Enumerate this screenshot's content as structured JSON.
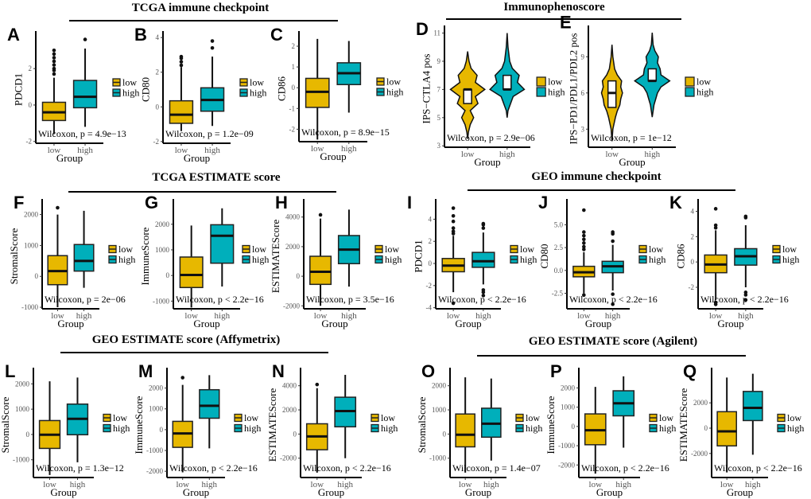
{
  "colors": {
    "low": "#E7B800",
    "high": "#00AFBB",
    "violin_box": "#FFFFFF"
  },
  "sections": [
    {
      "title": "TCGA  immune checkpoint"
    },
    {
      "title": "Immunophenoscore"
    },
    {
      "title": "TCGA ESTIMATE score"
    },
    {
      "title": "GEO  immune checkpoint"
    },
    {
      "title": "GEO ESTIMATE score (Affymetrix)"
    },
    {
      "title": "GEO ESTIMATE score (Agilent)"
    }
  ],
  "chart_data": [
    {
      "label": "A",
      "type": "box",
      "xlabel": "Group",
      "ylabel": "PDCD1",
      "ylim": [
        -2.1,
        3.8
      ],
      "yticks": [
        "-2",
        "0",
        "2"
      ],
      "categories": [
        "low",
        "high"
      ],
      "legend": [
        "low",
        "high"
      ],
      "stat": "Wilcoxon, p = 4.9e−13",
      "groups": [
        {
          "name": "low",
          "min": -1.6,
          "q1": -0.85,
          "median": -0.4,
          "q3": 0.15,
          "max": 1.5,
          "outliers": [
            1.7,
            1.9,
            2.0,
            2.2,
            2.4,
            2.6,
            2.8,
            3.0
          ]
        },
        {
          "name": "high",
          "min": -1.2,
          "q1": -0.15,
          "median": 0.45,
          "q3": 1.35,
          "max": 3.1,
          "outliers": [
            3.6
          ]
        }
      ]
    },
    {
      "label": "B",
      "type": "box",
      "xlabel": "Group",
      "ylabel": "CD80",
      "ylim": [
        -2.1,
        4.1
      ],
      "yticks": [
        "-2",
        "0",
        "2",
        "4"
      ],
      "categories": [
        "low",
        "high"
      ],
      "legend": [
        "low",
        "high"
      ],
      "stat": "Wilcoxon, p = 1.2e−09",
      "groups": [
        {
          "name": "low",
          "min": -1.4,
          "q1": -0.95,
          "median": -0.45,
          "q3": 0.35,
          "max": 2.3,
          "outliers": [
            2.4,
            2.6,
            2.8,
            2.9
          ]
        },
        {
          "name": "high",
          "min": -1.1,
          "q1": -0.25,
          "median": 0.4,
          "q3": 1.1,
          "max": 2.9,
          "outliers": [
            3.4,
            3.8
          ]
        }
      ]
    },
    {
      "label": "C",
      "type": "box",
      "xlabel": "Group",
      "ylabel": "CD86",
      "ylim": [
        -2.6,
        2.5
      ],
      "yticks": [
        "-2",
        "-1",
        "0",
        "1",
        "2"
      ],
      "categories": [
        "low",
        "high"
      ],
      "legend": [
        "low",
        "high"
      ],
      "stat": "Wilcoxon, p = 8.9e−15",
      "groups": [
        {
          "name": "low",
          "min": -2.5,
          "q1": -0.95,
          "median": -0.2,
          "q3": 0.45,
          "max": 2.35,
          "outliers": []
        },
        {
          "name": "high",
          "min": -1.2,
          "q1": 0.15,
          "median": 0.7,
          "q3": 1.2,
          "max": 2.25,
          "outliers": []
        }
      ]
    },
    {
      "label": "D",
      "type": "violin",
      "xlabel": "Group",
      "ylabel": "IPS−CTLA4 pos",
      "ylim": [
        2.9,
        11.2
      ],
      "yticks": [
        "3",
        "5",
        "7",
        "9",
        "11"
      ],
      "categories": [
        "low",
        "high"
      ],
      "legend": [
        "low",
        "high"
      ],
      "stat": "Wilcoxon, p = 2.9e−06",
      "groups": [
        {
          "name": "low",
          "q1": 6.0,
          "median": 7.0,
          "q3": 7.0,
          "density": [
            [
              3.5,
              0
            ],
            [
              4,
              0.05
            ],
            [
              4.5,
              0.15
            ],
            [
              5,
              0.35
            ],
            [
              5.5,
              0.15
            ],
            [
              6,
              0.6
            ],
            [
              6.5,
              0.45
            ],
            [
              7,
              1.0
            ],
            [
              7.5,
              0.45
            ],
            [
              8,
              0.55
            ],
            [
              8.5,
              0.2
            ],
            [
              9,
              0.08
            ],
            [
              9.7,
              0
            ]
          ]
        },
        {
          "name": "high",
          "q1": 7.0,
          "median": 7.0,
          "q3": 8.0,
          "density": [
            [
              5,
              0
            ],
            [
              5.5,
              0.05
            ],
            [
              6,
              0.2
            ],
            [
              6.5,
              0.35
            ],
            [
              7,
              1.0
            ],
            [
              7.5,
              0.6
            ],
            [
              8,
              0.7
            ],
            [
              8.5,
              0.3
            ],
            [
              9,
              0.15
            ],
            [
              9.5,
              0.1
            ],
            [
              10,
              0.05
            ],
            [
              11,
              0
            ]
          ]
        }
      ]
    },
    {
      "label": "E",
      "type": "violin",
      "xlabel": "Group",
      "ylabel": "IPS−PD1/PDL1/PDL2 pos",
      "ylim": [
        1.5,
        11.2
      ],
      "yticks": [
        "3",
        "6",
        "9"
      ],
      "categories": [
        "low",
        "high"
      ],
      "legend": [
        "low",
        "high"
      ],
      "stat": "Wilcoxon, p = 1e−12",
      "groups": [
        {
          "name": "low",
          "q1": 4.8,
          "median": 6.0,
          "q3": 7.0,
          "density": [
            [
              2,
              0
            ],
            [
              3,
              0.05
            ],
            [
              4,
              0.2
            ],
            [
              4.5,
              0.3
            ],
            [
              5,
              0.45
            ],
            [
              5.5,
              0.5
            ],
            [
              6,
              0.6
            ],
            [
              6.5,
              0.5
            ],
            [
              7,
              0.55
            ],
            [
              7.5,
              0.3
            ],
            [
              8,
              0.15
            ],
            [
              9,
              0.05
            ],
            [
              10,
              0
            ]
          ]
        },
        {
          "name": "high",
          "q1": 7.0,
          "median": 7.0,
          "q3": 8.0,
          "density": [
            [
              4,
              0
            ],
            [
              5,
              0.1
            ],
            [
              5.5,
              0.2
            ],
            [
              6,
              0.3
            ],
            [
              6.5,
              0.5
            ],
            [
              7,
              1.0
            ],
            [
              7.5,
              0.5
            ],
            [
              8,
              0.45
            ],
            [
              8.5,
              0.3
            ],
            [
              9,
              0.35
            ],
            [
              9.5,
              0.15
            ],
            [
              10,
              0.05
            ],
            [
              11,
              0
            ]
          ]
        }
      ]
    },
    {
      "label": "F",
      "type": "box",
      "xlabel": "Group",
      "ylabel": "StromalScore",
      "ylim": [
        -1050,
        2350
      ],
      "yticks": [
        "-1000",
        "0",
        "1000",
        "2000"
      ],
      "categories": [
        "low",
        "high"
      ],
      "legend": [
        "low",
        "high"
      ],
      "stat": "Wilcoxon, p = 2e−06",
      "groups": [
        {
          "name": "low",
          "min": -1000,
          "q1": -270,
          "median": 170,
          "q3": 670,
          "max": 2000,
          "outliers": [
            2220
          ]
        },
        {
          "name": "high",
          "min": -370,
          "q1": 170,
          "median": 500,
          "q3": 1030,
          "max": 2120,
          "outliers": []
        }
      ]
    },
    {
      "label": "G",
      "type": "box",
      "xlabel": "Group",
      "ylabel": "ImmuneScore",
      "ylim": [
        -1300,
        2800
      ],
      "yticks": [
        "-1000",
        "0",
        "1000",
        "2000"
      ],
      "categories": [
        "low",
        "high"
      ],
      "legend": [
        "low",
        "high"
      ],
      "stat": "Wilcoxon, p < 2.2e−16",
      "groups": [
        {
          "name": "low",
          "min": -1250,
          "q1": -470,
          "median": 20,
          "q3": 720,
          "max": 1950,
          "outliers": []
        },
        {
          "name": "high",
          "min": -430,
          "q1": 480,
          "median": 1550,
          "q3": 1980,
          "max": 2620,
          "outliers": []
        }
      ]
    },
    {
      "label": "H",
      "type": "box",
      "xlabel": "Group",
      "ylabel": "ESTIMATEScore",
      "ylim": [
        -2200,
        4900
      ],
      "yticks": [
        "-2000",
        "0",
        "2000",
        "4000"
      ],
      "categories": [
        "low",
        "high"
      ],
      "legend": [
        "low",
        "high"
      ],
      "stat": "Wilcoxon, p = 3.5e−16",
      "groups": [
        {
          "name": "low",
          "min": -2000,
          "q1": -550,
          "median": 300,
          "q3": 1350,
          "max": 3900,
          "outliers": [
            4150
          ]
        },
        {
          "name": "high",
          "min": -700,
          "q1": 850,
          "median": 1800,
          "q3": 2750,
          "max": 4500,
          "outliers": []
        }
      ]
    },
    {
      "label": "I",
      "type": "box",
      "xlabel": "Group",
      "ylabel": "PDCD1",
      "ylim": [
        -4.1,
        5.4
      ],
      "yticks": [
        "-4",
        "-2",
        "0",
        "2",
        "4"
      ],
      "categories": [
        "low",
        "high"
      ],
      "legend": [
        "low",
        "high"
      ],
      "stat": "Wilcoxon, p < 2.2e−16",
      "groups": [
        {
          "name": "low",
          "min": -2.6,
          "q1": -0.75,
          "median": -0.2,
          "q3": 0.45,
          "max": 2.5,
          "outliers": [
            -3.6,
            2.7,
            2.9,
            3.2,
            3.8,
            4.3,
            5.0
          ]
        },
        {
          "name": "high",
          "min": -1.9,
          "q1": -0.35,
          "median": 0.2,
          "q3": 1.0,
          "max": 2.8,
          "outliers": [
            -2.4,
            -2.6,
            -2.9,
            3.2,
            3.5,
            3.6
          ]
        }
      ]
    },
    {
      "label": "J",
      "type": "box",
      "xlabel": "Group",
      "ylabel": "CD80",
      "ylim": [
        -4.2,
        7.3
      ],
      "yticks": [
        "-2.5",
        "0.0",
        "2.5",
        "5.0"
      ],
      "categories": [
        "low",
        "high"
      ],
      "legend": [
        "low",
        "high"
      ],
      "stat": "Wilcoxon, p < 2.2e−16",
      "groups": [
        {
          "name": "low",
          "min": -2.5,
          "q1": -0.7,
          "median": -0.2,
          "q3": 0.45,
          "max": 2.0,
          "outliers": [
            -2.7,
            2.3,
            2.6,
            3.0,
            3.4,
            3.8,
            4.2,
            6.6
          ]
        },
        {
          "name": "high",
          "min": -2.2,
          "q1": -0.25,
          "median": 0.45,
          "q3": 1.0,
          "max": 2.8,
          "outliers": [
            -2.6,
            -3.7,
            3.2,
            4.0,
            4.2
          ]
        }
      ]
    },
    {
      "label": "K",
      "type": "box",
      "xlabel": "Group",
      "ylabel": "CD86",
      "ylim": [
        -3.7,
        4.6
      ],
      "yticks": [
        "-2",
        "0",
        "2",
        "4"
      ],
      "categories": [
        "low",
        "high"
      ],
      "legend": [
        "low",
        "high"
      ],
      "stat": "Wilcoxon, p < 2.2e−16",
      "groups": [
        {
          "name": "low",
          "min": -3.0,
          "q1": -0.85,
          "median": -0.2,
          "q3": 0.55,
          "max": 2.5,
          "outliers": [
            -3.2,
            -3.35,
            2.7,
            2.9,
            4.2
          ]
        },
        {
          "name": "high",
          "min": -2.0,
          "q1": -0.25,
          "median": 0.45,
          "q3": 1.05,
          "max": 2.9,
          "outliers": [
            -2.4,
            -2.6,
            -3.0,
            3.5,
            3.6
          ]
        }
      ]
    },
    {
      "label": "L",
      "type": "box",
      "xlabel": "Group",
      "ylabel": "StromalScore",
      "ylim": [
        -1700,
        2450
      ],
      "yticks": [
        "-1000",
        "0",
        "1000",
        "2000"
      ],
      "categories": [
        "low",
        "high"
      ],
      "legend": [
        "low",
        "high"
      ],
      "stat": "Wilcoxon, p = 1.3e−12",
      "groups": [
        {
          "name": "low",
          "min": -1600,
          "q1": -550,
          "median": -10,
          "q3": 550,
          "max": 2100,
          "outliers": []
        },
        {
          "name": "high",
          "min": -1100,
          "q1": -10,
          "median": 620,
          "q3": 1200,
          "max": 2250,
          "outliers": []
        }
      ]
    },
    {
      "label": "M",
      "type": "box",
      "xlabel": "Group",
      "ylabel": "ImmuneScore",
      "ylim": [
        -2300,
        2750
      ],
      "yticks": [
        "-2000",
        "-1000",
        "0",
        "1000",
        "2000"
      ],
      "categories": [
        "low",
        "high"
      ],
      "legend": [
        "low",
        "high"
      ],
      "stat": "Wilcoxon, p < 2.2e−16",
      "groups": [
        {
          "name": "low",
          "min": -2050,
          "q1": -850,
          "median": -180,
          "q3": 400,
          "max": 2150,
          "outliers": [
            2500
          ]
        },
        {
          "name": "high",
          "min": -900,
          "q1": 550,
          "median": 1150,
          "q3": 1920,
          "max": 2620,
          "outliers": []
        }
      ]
    },
    {
      "label": "N",
      "type": "box",
      "xlabel": "Group",
      "ylabel": "ESTIMATEScore",
      "ylim": [
        -3600,
        5100
      ],
      "yticks": [
        "-2000",
        "0",
        "2000",
        "4000"
      ],
      "categories": [
        "low",
        "high"
      ],
      "legend": [
        "low",
        "high"
      ],
      "stat": "Wilcoxon, p < 2.2e−16",
      "groups": [
        {
          "name": "low",
          "min": -3200,
          "q1": -1300,
          "median": -200,
          "q3": 850,
          "max": 3800,
          "outliers": [
            4100
          ]
        },
        {
          "name": "high",
          "min": -2000,
          "q1": 600,
          "median": 1900,
          "q3": 3050,
          "max": 4900,
          "outliers": []
        }
      ]
    },
    {
      "label": "O",
      "type": "box",
      "xlabel": "Group",
      "ylabel": "StromalScore",
      "ylim": [
        -1800,
        2550
      ],
      "yticks": [
        "-1000",
        "0",
        "1000",
        "2000"
      ],
      "categories": [
        "low",
        "high"
      ],
      "legend": [
        "low",
        "high"
      ],
      "stat": "Wilcoxon, p = 1.4e−07",
      "groups": [
        {
          "name": "low",
          "min": -1600,
          "q1": -530,
          "median": -30,
          "q3": 830,
          "max": 2350,
          "outliers": []
        },
        {
          "name": "high",
          "min": -1100,
          "q1": -130,
          "median": 430,
          "q3": 1070,
          "max": 2300,
          "outliers": []
        }
      ]
    },
    {
      "label": "P",
      "type": "box",
      "xlabel": "Group",
      "ylabel": "ImmuneScore",
      "ylim": [
        -2650,
        2800
      ],
      "yticks": [
        "-2000",
        "-1000",
        "0",
        "1000",
        "2000"
      ],
      "categories": [
        "low",
        "high"
      ],
      "legend": [
        "low",
        "high"
      ],
      "stat": "Wilcoxon, p < 2.2e−16",
      "groups": [
        {
          "name": "low",
          "min": -2450,
          "q1": -950,
          "median": -200,
          "q3": 650,
          "max": 2050,
          "outliers": []
        },
        {
          "name": "high",
          "min": -1100,
          "q1": 550,
          "median": 1200,
          "q3": 1850,
          "max": 2600,
          "outliers": []
        }
      ]
    },
    {
      "label": "Q",
      "type": "box",
      "xlabel": "Group",
      "ylabel": "ESTIMATEScore",
      "ylim": [
        -3900,
        4400
      ],
      "yticks": [
        "-2000",
        "0",
        "2000"
      ],
      "categories": [
        "low",
        "high"
      ],
      "legend": [
        "low",
        "high"
      ],
      "stat": "Wilcoxon, p < 2.2e−16",
      "groups": [
        {
          "name": "low",
          "min": -3500,
          "q1": -1400,
          "median": -250,
          "q3": 1300,
          "max": 4000,
          "outliers": []
        },
        {
          "name": "high",
          "min": -2100,
          "q1": 600,
          "median": 1600,
          "q3": 2900,
          "max": 4300,
          "outliers": []
        }
      ]
    }
  ]
}
